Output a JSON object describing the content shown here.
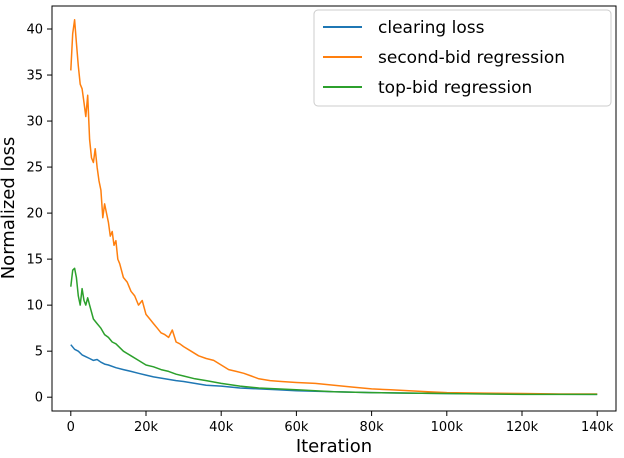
{
  "chart_data": {
    "type": "line",
    "xlabel": "Iteration",
    "ylabel": "Normalized loss",
    "xlim": [
      -5000,
      145000
    ],
    "ylim": [
      -1.5,
      42.5
    ],
    "x_ticks": [
      0,
      20000,
      40000,
      60000,
      80000,
      100000,
      120000,
      140000
    ],
    "x_tick_labels": [
      "0",
      "20k",
      "40k",
      "60k",
      "80k",
      "100k",
      "120k",
      "140k"
    ],
    "y_ticks": [
      0,
      5,
      10,
      15,
      20,
      25,
      30,
      35,
      40
    ],
    "y_tick_labels": [
      "0",
      "5",
      "10",
      "15",
      "20",
      "25",
      "30",
      "35",
      "40"
    ],
    "grid": false,
    "legend_position": "top-right",
    "series": [
      {
        "name": "clearing loss",
        "color": "#1f77b4",
        "x": [
          0,
          1000,
          2000,
          3000,
          4000,
          5000,
          6000,
          7000,
          8000,
          9000,
          10000,
          12000,
          14000,
          16000,
          18000,
          20000,
          22000,
          25000,
          28000,
          30000,
          33000,
          36000,
          40000,
          45000,
          50000,
          55000,
          60000,
          70000,
          80000,
          90000,
          100000,
          110000,
          120000,
          130000,
          140000
        ],
        "values": [
          5.7,
          5.2,
          5.0,
          4.6,
          4.4,
          4.2,
          4.0,
          4.1,
          3.8,
          3.6,
          3.5,
          3.2,
          3.0,
          2.8,
          2.6,
          2.4,
          2.2,
          2.0,
          1.8,
          1.7,
          1.5,
          1.3,
          1.2,
          1.0,
          0.9,
          0.8,
          0.7,
          0.6,
          0.5,
          0.45,
          0.4,
          0.38,
          0.35,
          0.33,
          0.3
        ]
      },
      {
        "name": "second-bid regression",
        "color": "#ff7f0e",
        "x": [
          0,
          500,
          1000,
          1500,
          2000,
          2500,
          3000,
          3500,
          4000,
          4500,
          5000,
          5500,
          6000,
          6500,
          7000,
          7500,
          8000,
          8500,
          9000,
          9500,
          10000,
          10500,
          11000,
          11500,
          12000,
          12500,
          13000,
          14000,
          15000,
          16000,
          17000,
          18000,
          19000,
          20000,
          21000,
          22000,
          23000,
          24000,
          25000,
          26000,
          27000,
          28000,
          29000,
          30000,
          32000,
          34000,
          36000,
          38000,
          40000,
          42000,
          44000,
          46000,
          48000,
          50000,
          53000,
          56000,
          60000,
          65000,
          70000,
          75000,
          80000,
          85000,
          90000,
          95000,
          100000,
          110000,
          120000,
          130000,
          140000
        ],
        "values": [
          35.5,
          39.5,
          41.0,
          38.5,
          36.0,
          34.0,
          33.5,
          32.0,
          30.5,
          32.8,
          28.0,
          26.0,
          25.5,
          27.0,
          25.0,
          23.5,
          22.5,
          19.5,
          21.0,
          20.0,
          19.0,
          17.5,
          18.0,
          16.5,
          17.0,
          15.0,
          14.5,
          13.0,
          12.5,
          11.5,
          11.0,
          10.0,
          10.5,
          9.0,
          8.5,
          8.0,
          7.5,
          7.0,
          6.8,
          6.5,
          7.3,
          6.0,
          5.8,
          5.5,
          5.0,
          4.5,
          4.2,
          4.0,
          3.5,
          3.0,
          2.8,
          2.6,
          2.3,
          2.0,
          1.8,
          1.7,
          1.6,
          1.5,
          1.3,
          1.1,
          0.9,
          0.8,
          0.7,
          0.6,
          0.5,
          0.45,
          0.4,
          0.35,
          0.35
        ]
      },
      {
        "name": "top-bid regression",
        "color": "#2ca02c",
        "x": [
          0,
          500,
          1000,
          1500,
          2000,
          2500,
          3000,
          3500,
          4000,
          4500,
          5000,
          6000,
          7000,
          8000,
          9000,
          10000,
          11000,
          12000,
          14000,
          16000,
          18000,
          20000,
          22000,
          24000,
          26000,
          28000,
          30000,
          33000,
          36000,
          40000,
          45000,
          50000,
          55000,
          60000,
          70000,
          80000,
          90000,
          100000,
          110000,
          120000,
          130000,
          140000
        ],
        "values": [
          12.0,
          13.8,
          14.0,
          13.0,
          11.0,
          10.0,
          11.8,
          10.5,
          10.0,
          10.8,
          10.0,
          8.5,
          8.0,
          7.5,
          6.8,
          6.5,
          6.0,
          5.8,
          5.0,
          4.5,
          4.0,
          3.5,
          3.3,
          3.0,
          2.8,
          2.5,
          2.3,
          2.0,
          1.8,
          1.5,
          1.2,
          1.0,
          0.9,
          0.8,
          0.6,
          0.5,
          0.45,
          0.4,
          0.35,
          0.3,
          0.3,
          0.3
        ]
      }
    ]
  }
}
